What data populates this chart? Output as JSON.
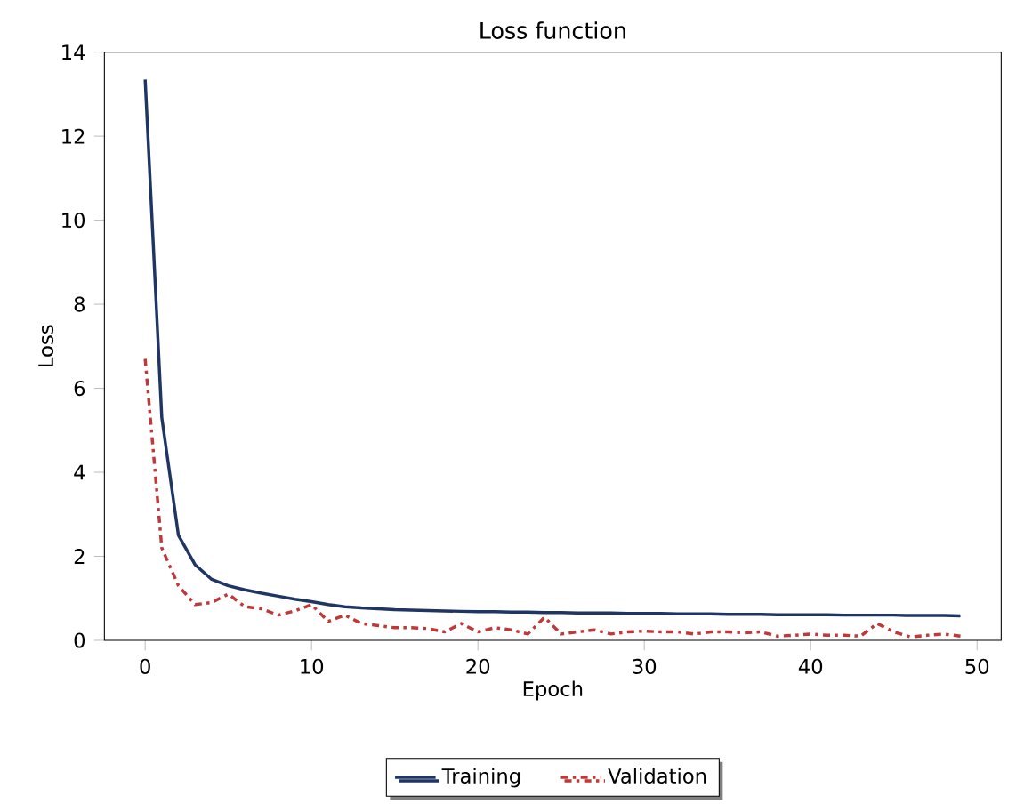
{
  "chart_data": {
    "type": "line",
    "title": "Loss function",
    "xlabel": "Epoch",
    "ylabel": "Loss",
    "x": [
      0,
      1,
      2,
      3,
      4,
      5,
      6,
      7,
      8,
      9,
      10,
      11,
      12,
      13,
      14,
      15,
      16,
      17,
      18,
      19,
      20,
      21,
      22,
      23,
      24,
      25,
      26,
      27,
      28,
      29,
      30,
      31,
      32,
      33,
      34,
      35,
      36,
      37,
      38,
      39,
      40,
      41,
      42,
      43,
      44,
      45,
      46,
      47,
      48,
      49
    ],
    "series": [
      {
        "name": "Training",
        "color": "#1f3564",
        "line_style": "solid",
        "values": [
          13.35,
          5.3,
          2.5,
          1.8,
          1.45,
          1.3,
          1.2,
          1.12,
          1.05,
          0.98,
          0.92,
          0.85,
          0.8,
          0.77,
          0.75,
          0.73,
          0.72,
          0.71,
          0.7,
          0.69,
          0.68,
          0.68,
          0.67,
          0.67,
          0.66,
          0.66,
          0.65,
          0.65,
          0.65,
          0.64,
          0.64,
          0.64,
          0.63,
          0.63,
          0.63,
          0.62,
          0.62,
          0.62,
          0.61,
          0.61,
          0.61,
          0.61,
          0.6,
          0.6,
          0.6,
          0.6,
          0.59,
          0.59,
          0.59,
          0.58
        ]
      },
      {
        "name": "Validation",
        "color": "#c03838",
        "line_style": "dashdot",
        "values": [
          6.7,
          2.2,
          1.3,
          0.85,
          0.9,
          1.1,
          0.8,
          0.75,
          0.6,
          0.7,
          0.85,
          0.45,
          0.6,
          0.4,
          0.35,
          0.3,
          0.3,
          0.28,
          0.2,
          0.4,
          0.2,
          0.3,
          0.25,
          0.15,
          0.55,
          0.15,
          0.2,
          0.25,
          0.15,
          0.2,
          0.22,
          0.2,
          0.2,
          0.15,
          0.2,
          0.2,
          0.18,
          0.2,
          0.1,
          0.12,
          0.15,
          0.12,
          0.12,
          0.1,
          0.4,
          0.2,
          0.08,
          0.12,
          0.15,
          0.1
        ]
      }
    ],
    "xlim": [
      -2.45,
      51.45
    ],
    "ylim": [
      0,
      14
    ],
    "xticks": [
      0,
      10,
      20,
      30,
      40,
      50
    ],
    "yticks": [
      0,
      2,
      4,
      6,
      8,
      10,
      12,
      14
    ],
    "legend": "bottom",
    "grid": false,
    "marker": "none"
  }
}
